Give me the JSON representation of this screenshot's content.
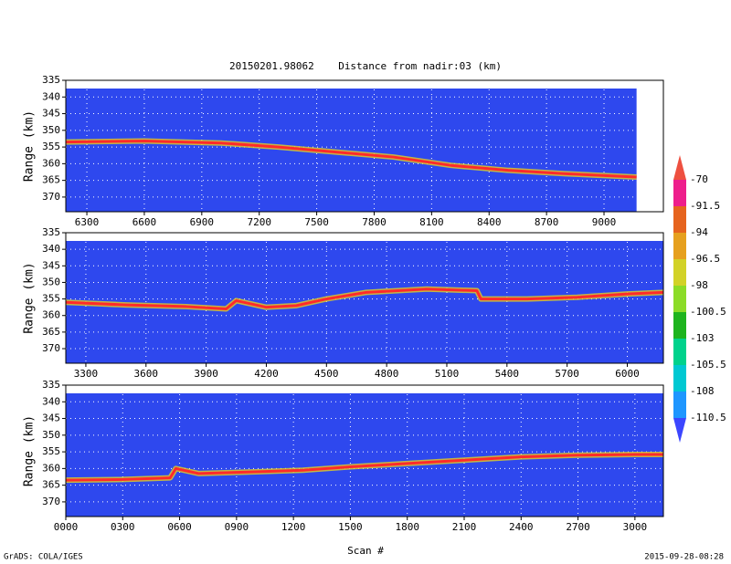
{
  "title": "20150201.98062    Distance from nadir:03 (km)",
  "x_label": "Scan #",
  "footer_left": "GrADS: COLA/IGES",
  "footer_right": "2015-09-28-08:28",
  "colorbar": {
    "levels": [
      -70,
      -91.5,
      -94,
      -96.5,
      -98,
      -100.5,
      -103,
      -105.5,
      -108,
      -110.5
    ],
    "colors": [
      "#ee5040",
      "#ee1e8c",
      "#e6641e",
      "#e6a01e",
      "#d2d228",
      "#8cdc28",
      "#1eb41e",
      "#00d28c",
      "#00c8d2",
      "#1e96ff",
      "#3c46ff"
    ]
  },
  "chart_data": [
    {
      "type": "line",
      "y_label": "Range (km)",
      "xlim": [
        6190,
        9310
      ],
      "ylim": [
        335,
        374.4
      ],
      "xticks": [
        6300,
        6600,
        6900,
        7200,
        7500,
        7800,
        8100,
        8400,
        8700,
        9000
      ],
      "yticks": [
        335,
        340,
        345,
        350,
        355,
        360,
        365,
        370
      ],
      "grid": true,
      "background": "#2e48ee",
      "coverage": [
        6190,
        9170
      ],
      "x": [
        6190,
        6600,
        7000,
        7300,
        7600,
        7900,
        8200,
        8500,
        8800,
        9170
      ],
      "series": [
        {
          "color": "#ff2a2a",
          "values": [
            353.5,
            353.2,
            353.8,
            355,
            356.5,
            358,
            360.5,
            362,
            363,
            364
          ]
        }
      ]
    },
    {
      "type": "line",
      "y_label": "Range (km)",
      "xlim": [
        3200,
        6180
      ],
      "ylim": [
        335,
        374.4
      ],
      "xticks": [
        3300,
        3600,
        3900,
        4200,
        4500,
        4800,
        5100,
        5400,
        5700,
        6000
      ],
      "yticks": [
        335,
        340,
        345,
        350,
        355,
        360,
        365,
        370
      ],
      "grid": true,
      "background": "#2e48ee",
      "coverage": [
        3200,
        6180
      ],
      "x": [
        3200,
        3500,
        3800,
        4000,
        4050,
        4200,
        4350,
        4500,
        4700,
        5000,
        5250,
        5270,
        5500,
        5750,
        6000,
        6180
      ],
      "series": [
        {
          "color": "#ff2a2a",
          "values": [
            356,
            356.8,
            357.3,
            358,
            355.5,
            357.5,
            357,
            355,
            353,
            352,
            352.5,
            355,
            355,
            354.5,
            353.5,
            353
          ]
        }
      ]
    },
    {
      "type": "line",
      "y_label": "Range (km)",
      "xlim": [
        0,
        3150
      ],
      "ylim": [
        335,
        374.4
      ],
      "xticks": [
        {
          "value": 0,
          "label": "0000"
        },
        {
          "value": 300,
          "label": "0300"
        },
        {
          "value": 600,
          "label": "0600"
        },
        {
          "value": 900,
          "label": "0900"
        },
        1200,
        1500,
        1800,
        2100,
        2400,
        2700,
        3000
      ],
      "yticks": [
        335,
        340,
        345,
        350,
        355,
        360,
        365,
        370
      ],
      "grid": true,
      "background": "#2e48ee",
      "coverage": [
        0,
        3150
      ],
      "x": [
        0,
        300,
        550,
        580,
        700,
        1000,
        1250,
        1500,
        1800,
        2100,
        2400,
        2700,
        3000,
        3150
      ],
      "series": [
        {
          "color": "#ff2a2a",
          "values": [
            363.5,
            363.3,
            362.8,
            360,
            361.5,
            361,
            360.5,
            359.5,
            358.5,
            357.5,
            356.5,
            356,
            355.8,
            355.8
          ]
        }
      ]
    }
  ]
}
